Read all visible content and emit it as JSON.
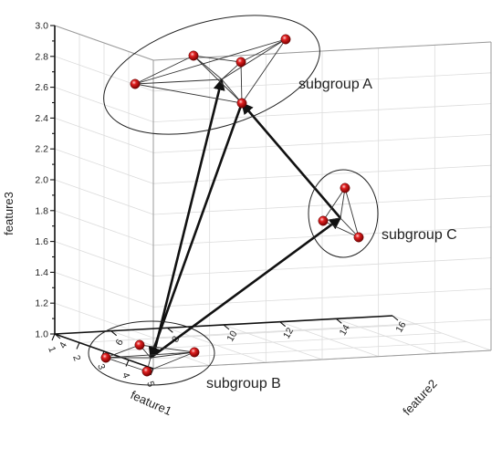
{
  "chart_data": {
    "type": "scatter",
    "dimensions": 3,
    "title": "",
    "axes": {
      "x": {
        "label": "feature1",
        "range": [
          1,
          5
        ],
        "ticks": [
          "1",
          "2",
          "3",
          "4",
          "5"
        ]
      },
      "y": {
        "label": "feature2",
        "range": [
          4,
          16
        ],
        "ticks": [
          "4",
          "6",
          "8",
          "10",
          "12",
          "14",
          "16"
        ]
      },
      "z": {
        "label": "feature3",
        "range": [
          1.0,
          3.0
        ],
        "ticks": [
          "1.0",
          "1.2",
          "1.4",
          "1.6",
          "1.8",
          "2.0",
          "2.2",
          "2.4",
          "2.6",
          "2.8",
          "3.0"
        ]
      }
    },
    "grid": true,
    "groups": [
      {
        "name": "subgroup A",
        "hub": {
          "x": 2.4,
          "y": 13.0,
          "z": 2.9
        },
        "points": [
          {
            "x": 2.0,
            "y": 15.0,
            "z": 2.95
          },
          {
            "x": 2.3,
            "y": 11.0,
            "z": 2.9
          },
          {
            "x": 2.9,
            "y": 12.0,
            "z": 2.87
          },
          {
            "x": 2.5,
            "y": 15.5,
            "z": 3.1
          },
          {
            "x": 2.6,
            "y": 13.0,
            "z": 2.8
          }
        ]
      },
      {
        "name": "subgroup B",
        "hub": {
          "x": 2.6,
          "y": 6.0,
          "z": 1.0
        },
        "points": [
          {
            "x": 1.6,
            "y": 6.0,
            "z": 1.1
          },
          {
            "x": 2.4,
            "y": 5.0,
            "z": 1.0
          },
          {
            "x": 3.2,
            "y": 6.0,
            "z": 0.97
          },
          {
            "x": 2.7,
            "y": 8.0,
            "z": 1.1
          }
        ]
      },
      {
        "name": "subgroup C",
        "hub": {
          "x": 2.1,
          "y": 15.0,
          "z": 1.6
        },
        "points": [
          {
            "x": 2.2,
            "y": 14.2,
            "z": 1.9
          },
          {
            "x": 1.5,
            "y": 13.8,
            "z": 1.7
          },
          {
            "x": 2.1,
            "y": 14.5,
            "z": 1.45
          }
        ]
      }
    ]
  }
}
